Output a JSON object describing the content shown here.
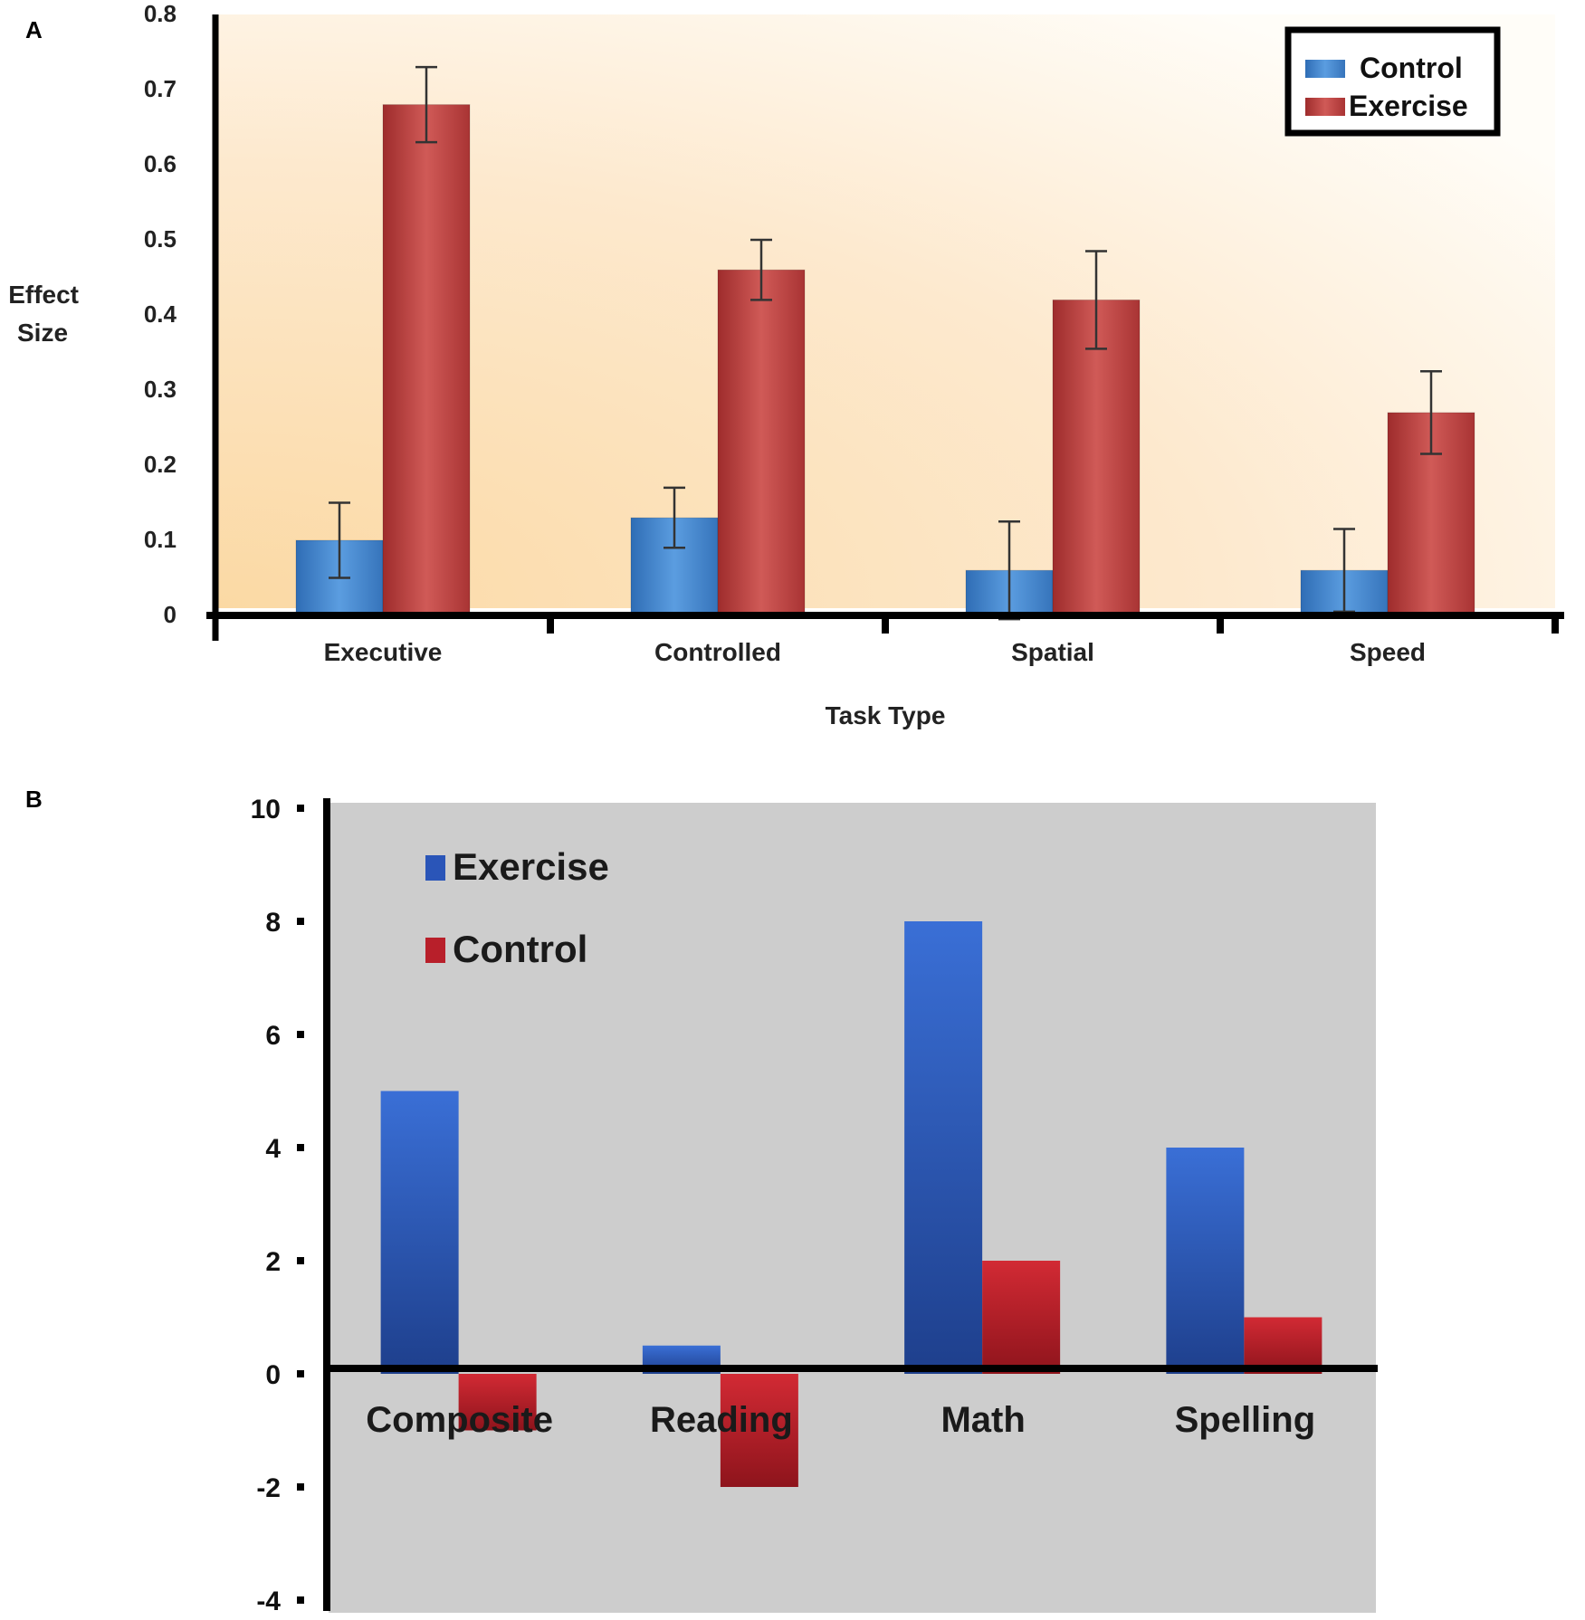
{
  "chart_data": [
    {
      "panel": "A",
      "type": "bar",
      "title": "",
      "xlabel": "Task Type",
      "ylabel": "Effect Size",
      "ylim": [
        0,
        0.8
      ],
      "yticks": [
        "0",
        "0.1",
        "0.2",
        "0.3",
        "0.4",
        "0.5",
        "0.6",
        "0.7",
        "0.8"
      ],
      "categories": [
        "Executive",
        "Controlled",
        "Spatial",
        "Speed"
      ],
      "series": [
        {
          "name": "Control",
          "color": "#3d7fc7",
          "values": [
            0.1,
            0.13,
            0.06,
            0.06
          ],
          "errors": [
            0.05,
            0.04,
            0.065,
            0.055
          ]
        },
        {
          "name": "Exercise",
          "color": "#b73a3a",
          "values": [
            0.68,
            0.46,
            0.42,
            0.27
          ],
          "errors": [
            0.05,
            0.04,
            0.065,
            0.055
          ]
        }
      ],
      "legend": [
        "Control",
        "Exercise"
      ],
      "legend_position": "top-right",
      "grid": false
    },
    {
      "panel": "B",
      "type": "bar",
      "title": "",
      "xlabel": "",
      "ylabel": "",
      "ylim": [
        -4,
        10
      ],
      "yticks": [
        "-4",
        "-2",
        "0",
        "2",
        "4",
        "6",
        "8",
        "10"
      ],
      "categories": [
        "Composite",
        "Reading",
        "Math",
        "Spelling"
      ],
      "series": [
        {
          "name": "Exercise",
          "color": "#2a55b8",
          "values": [
            5,
            0.5,
            8,
            4
          ]
        },
        {
          "name": "Control",
          "color": "#b81f2a",
          "values": [
            -1,
            -2,
            2,
            1
          ]
        }
      ],
      "legend": [
        "Exercise",
        "Control"
      ],
      "legend_position": "top-left",
      "grid": false
    }
  ],
  "panel_labels": {
    "a": "A",
    "b": "B"
  }
}
